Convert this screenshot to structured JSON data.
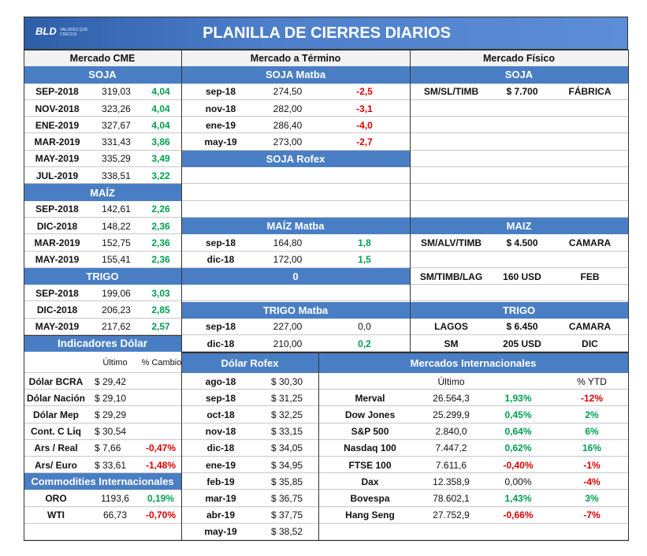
{
  "header": {
    "logo": "BLD",
    "tagline": "VALORES QUE CRECEN",
    "title": "PLANILLA DE CIERRES DIARIOS"
  },
  "cme": {
    "title": "Mercado CME",
    "groups": [
      {
        "title": "SOJA",
        "rows": [
          [
            "SEP-2018",
            "319,03",
            "4,04"
          ],
          [
            "NOV-2018",
            "323,26",
            "4,04"
          ],
          [
            "ENE-2019",
            "327,67",
            "4,04"
          ],
          [
            "MAR-2019",
            "331,43",
            "3,86"
          ],
          [
            "MAY-2019",
            "335,29",
            "3,49"
          ],
          [
            "JUL-2019",
            "338,51",
            "3,22"
          ]
        ]
      },
      {
        "title": "MAÍZ",
        "rows": [
          [
            "SEP-2018",
            "142,61",
            "2,26"
          ],
          [
            "DIC-2018",
            "148,22",
            "2,36"
          ],
          [
            "MAR-2019",
            "152,75",
            "2,36"
          ],
          [
            "MAY-2019",
            "155,41",
            "2,36"
          ]
        ]
      },
      {
        "title": "TRIGO",
        "rows": [
          [
            "SEP-2018",
            "199,06",
            "3,03"
          ],
          [
            "DIC-2018",
            "206,23",
            "2,85"
          ],
          [
            "MAY-2019",
            "217,62",
            "2,57"
          ]
        ]
      }
    ]
  },
  "termino": {
    "title": "Mercado a Término",
    "groups": [
      {
        "title": "SOJA Matba",
        "rows": [
          [
            "sep-18",
            "274,50",
            "-2,5"
          ],
          [
            "nov-18",
            "282,00",
            "-3,1"
          ],
          [
            "ene-19",
            "286,40",
            "-4,0"
          ],
          [
            "may-19",
            "273,00",
            "-2,7"
          ]
        ]
      },
      {
        "title": "SOJA Rofex",
        "rows": []
      },
      {
        "title": "MAÍZ Matba",
        "rows": [
          [
            "sep-18",
            "164,80",
            "1,8"
          ],
          [
            "dic-18",
            "172,00",
            "1,5"
          ]
        ]
      },
      {
        "title": "0",
        "rows": []
      },
      {
        "title": "TRIGO Matba",
        "rows": [
          [
            "sep-18",
            "227,00",
            "0,0"
          ],
          [
            "dic-18",
            "210,00",
            "0,2"
          ]
        ]
      }
    ]
  },
  "fisico": {
    "title": "Mercado Físico",
    "groups": [
      {
        "title": "SOJA",
        "rows": [
          [
            "SM/SL/TIMB",
            "$ 7.700",
            "FÁBRICA"
          ]
        ]
      },
      {
        "title": "MAIZ",
        "rows": [
          [
            "SM/ALV/TIMB",
            "$ 4.500",
            "CAMARA"
          ],
          [
            "SM/TIMB/LAG",
            "160 USD",
            "FEB"
          ]
        ]
      },
      {
        "title": "TRIGO",
        "rows": [
          [
            "LAGOS",
            "$ 6.450",
            "CAMARA"
          ],
          [
            "SM",
            "205 USD",
            "DIC"
          ]
        ]
      }
    ]
  },
  "dolar": {
    "title": "Indicadores Dólar",
    "columns": [
      "Último",
      "% Cambio"
    ],
    "rows": [
      [
        "Dólar BCRA",
        "$ 29,42"
      ],
      [
        "Dólar Nación",
        "$ 29,10"
      ],
      [
        "Dólar Mep",
        "$ 29,29"
      ],
      [
        "Cont. C Liq",
        "$ 30,54"
      ],
      [
        "Ars / Real",
        "$ 7,66",
        "-0,47%"
      ],
      [
        "Ars/ Euro",
        "$ 33,61",
        "-1,48%"
      ]
    ]
  },
  "commodities": {
    "title": "Commodities Internacionales",
    "rows": [
      [
        "ORO",
        "1193,6",
        "0,19%"
      ],
      [
        "WTI",
        "66,73",
        "-0,70%"
      ]
    ]
  },
  "rofex": {
    "title": "Dólar Rofex",
    "rows": [
      [
        "ago-18",
        "$ 30,30"
      ],
      [
        "sep-18",
        "$ 31,25"
      ],
      [
        "oct-18",
        "$ 32,25"
      ],
      [
        "nov-18",
        "$ 33,15"
      ],
      [
        "dic-18",
        "$ 34,05"
      ],
      [
        "ene-19",
        "$ 34,95"
      ],
      [
        "feb-19",
        "$ 35,85"
      ],
      [
        "mar-19",
        "$ 36,75"
      ],
      [
        "abr-19",
        "$ 37,75"
      ],
      [
        "may-19",
        "$ 38,52"
      ]
    ]
  },
  "internacional": {
    "title": "Mercados Internacionales",
    "columns": [
      "Último",
      "% YTD"
    ],
    "rows": [
      [
        "Merval",
        "26.564,3",
        "1,93%",
        "-12%"
      ],
      [
        "Dow Jones",
        "25.299,9",
        "0,45%",
        "2%"
      ],
      [
        "S&P 500",
        "2.840,0",
        "0,64%",
        "6%"
      ],
      [
        "Nasdaq 100",
        "7.447,2",
        "0,62%",
        "16%"
      ],
      [
        "FTSE 100",
        "7.611,6",
        "-0,40%",
        "-1%"
      ],
      [
        "Dax",
        "12.358,9",
        "0,00%",
        "-4%"
      ],
      [
        "Bovespa",
        "78.602,1",
        "1,43%",
        "3%"
      ],
      [
        "Hang Seng",
        "27.752,9",
        "-0,66%",
        "-7%"
      ]
    ]
  }
}
